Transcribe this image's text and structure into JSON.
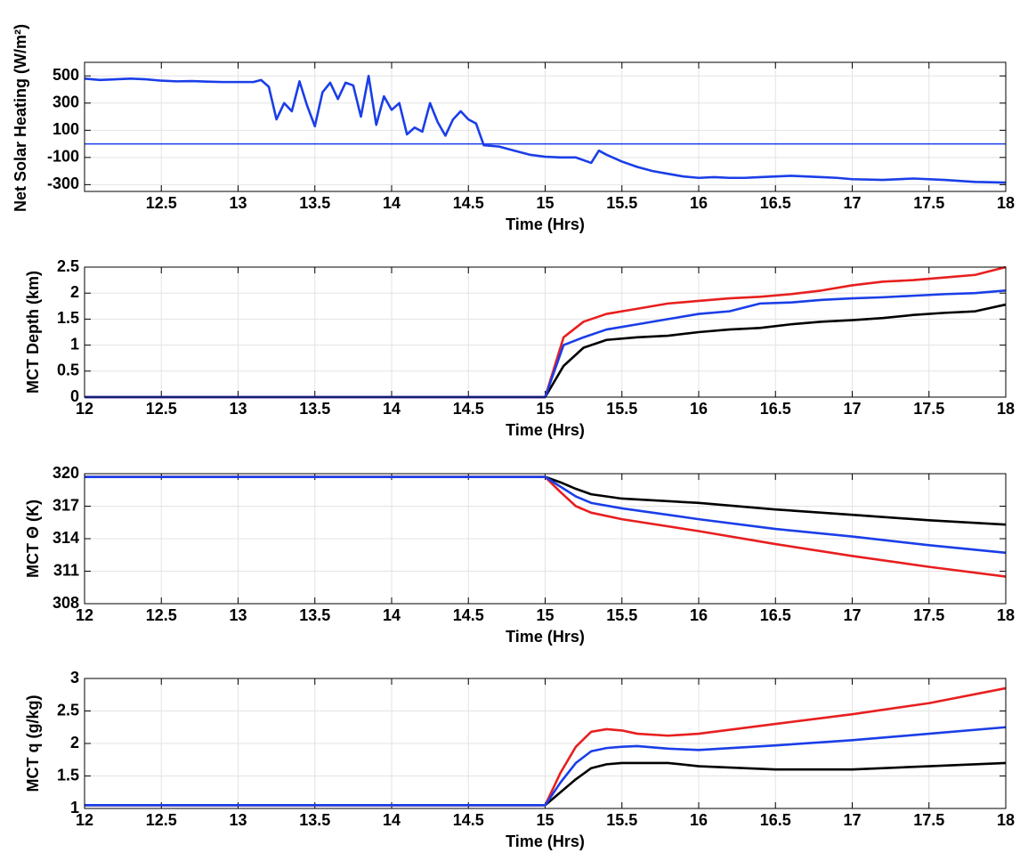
{
  "chart_data": [
    {
      "type": "line",
      "xlabel": "Time (Hrs)",
      "ylabel": "Net Solar Heating (W/m²)",
      "x": [
        12.0,
        12.1,
        12.2,
        12.3,
        12.4,
        12.5,
        12.6,
        12.7,
        12.8,
        12.9,
        13.0,
        13.1,
        13.15,
        13.2,
        13.25,
        13.3,
        13.35,
        13.4,
        13.45,
        13.5,
        13.55,
        13.6,
        13.65,
        13.7,
        13.75,
        13.8,
        13.85,
        13.9,
        13.95,
        14.0,
        14.05,
        14.1,
        14.15,
        14.2,
        14.25,
        14.3,
        14.35,
        14.4,
        14.45,
        14.5,
        14.55,
        14.6,
        14.7,
        14.8,
        14.9,
        15.0,
        15.1,
        15.2,
        15.3,
        15.35,
        15.4,
        15.5,
        15.6,
        15.7,
        15.8,
        15.9,
        16.0,
        16.1,
        16.2,
        16.3,
        16.4,
        16.5,
        16.6,
        16.7,
        16.8,
        16.9,
        17.0,
        17.2,
        17.4,
        17.6,
        17.8,
        18.0
      ],
      "series": [
        {
          "color": "#1a3ee8",
          "values": [
            480,
            470,
            475,
            480,
            475,
            465,
            460,
            462,
            458,
            455,
            455,
            455,
            470,
            420,
            180,
            300,
            240,
            460,
            280,
            130,
            380,
            450,
            330,
            450,
            430,
            200,
            500,
            140,
            350,
            250,
            300,
            70,
            120,
            90,
            300,
            160,
            60,
            180,
            240,
            180,
            150,
            -10,
            -20,
            -50,
            -80,
            -95,
            -100,
            -100,
            -140,
            -50,
            -80,
            -130,
            -170,
            -200,
            -220,
            -240,
            -250,
            -245,
            -250,
            -250,
            -245,
            -240,
            -235,
            -240,
            -245,
            -250,
            -260,
            -265,
            -255,
            -265,
            -280,
            -285
          ]
        }
      ],
      "reference_line": 0,
      "xlim": [
        12,
        18
      ],
      "xticks": [
        12.5,
        13,
        13.5,
        14,
        14.5,
        15,
        15.5,
        16,
        16.5,
        17,
        17.5,
        18
      ],
      "ylim": [
        -350,
        600
      ],
      "yticks": [
        -300,
        -100,
        100,
        300,
        500
      ],
      "grid": true
    },
    {
      "type": "line",
      "xlabel": "Time (Hrs)",
      "ylabel": "MCT Depth (km)",
      "x": [
        12,
        15,
        15.12,
        15.25,
        15.4,
        15.6,
        15.8,
        16.0,
        16.2,
        16.4,
        16.6,
        16.8,
        17.0,
        17.2,
        17.4,
        17.6,
        17.8,
        18.0
      ],
      "series": [
        {
          "color": "#000000",
          "values": [
            0,
            0,
            0.6,
            0.95,
            1.1,
            1.15,
            1.18,
            1.25,
            1.3,
            1.33,
            1.4,
            1.45,
            1.48,
            1.52,
            1.58,
            1.62,
            1.65,
            1.78
          ]
        },
        {
          "color": "#e81f1f",
          "values": [
            0,
            0,
            1.15,
            1.45,
            1.6,
            1.7,
            1.8,
            1.85,
            1.9,
            1.93,
            1.98,
            2.05,
            2.15,
            2.22,
            2.25,
            2.3,
            2.35,
            2.5
          ]
        },
        {
          "color": "#1a3ee8",
          "values": [
            0,
            0,
            1.0,
            1.15,
            1.3,
            1.4,
            1.5,
            1.6,
            1.65,
            1.8,
            1.82,
            1.87,
            1.9,
            1.92,
            1.95,
            1.98,
            2.0,
            2.05
          ]
        }
      ],
      "xlim": [
        12,
        18
      ],
      "xticks": [
        12,
        12.5,
        13,
        13.5,
        14,
        14.5,
        15,
        15.5,
        16,
        16.5,
        17,
        17.5,
        18
      ],
      "ylim": [
        0,
        2.5
      ],
      "yticks": [
        0,
        0.5,
        1,
        1.5,
        2,
        2.5
      ],
      "grid": true
    },
    {
      "type": "line",
      "xlabel": "Time (Hrs)",
      "ylabel": "MCT Θ (K)",
      "x": [
        12,
        15,
        15.1,
        15.2,
        15.3,
        15.5,
        16,
        16.5,
        17,
        17.5,
        18
      ],
      "series": [
        {
          "color": "#000000",
          "values": [
            319.7,
            319.7,
            319.2,
            318.6,
            318.1,
            317.7,
            317.3,
            316.7,
            316.2,
            315.7,
            315.3
          ]
        },
        {
          "color": "#e81f1f",
          "values": [
            319.7,
            319.7,
            318.3,
            317.0,
            316.4,
            315.8,
            314.7,
            313.5,
            312.4,
            311.4,
            310.5
          ]
        },
        {
          "color": "#1a3ee8",
          "values": [
            319.7,
            319.7,
            318.8,
            317.9,
            317.3,
            316.8,
            315.8,
            314.9,
            314.2,
            313.4,
            312.7
          ]
        }
      ],
      "xlim": [
        12,
        18
      ],
      "xticks": [
        12,
        12.5,
        13,
        13.5,
        14,
        14.5,
        15,
        15.5,
        16,
        16.5,
        17,
        17.5,
        18
      ],
      "ylim": [
        308,
        320
      ],
      "yticks": [
        308,
        311,
        314,
        317,
        320
      ],
      "grid": true
    },
    {
      "type": "line",
      "xlabel": "Time (Hrs)",
      "ylabel": "MCT q (g/kg)",
      "x": [
        12,
        15,
        15.1,
        15.2,
        15.3,
        15.4,
        15.5,
        15.6,
        15.8,
        16.0,
        16.5,
        17,
        17.5,
        18
      ],
      "series": [
        {
          "color": "#000000",
          "values": [
            1.05,
            1.05,
            1.25,
            1.45,
            1.62,
            1.68,
            1.7,
            1.7,
            1.7,
            1.65,
            1.6,
            1.6,
            1.65,
            1.7
          ]
        },
        {
          "color": "#e81f1f",
          "values": [
            1.05,
            1.05,
            1.55,
            1.95,
            2.18,
            2.22,
            2.2,
            2.15,
            2.12,
            2.15,
            2.3,
            2.45,
            2.62,
            2.85
          ]
        },
        {
          "color": "#1a3ee8",
          "values": [
            1.05,
            1.05,
            1.4,
            1.7,
            1.88,
            1.93,
            1.95,
            1.96,
            1.92,
            1.9,
            1.97,
            2.05,
            2.15,
            2.25
          ]
        }
      ],
      "xlim": [
        12,
        18
      ],
      "xticks": [
        12,
        12.5,
        13,
        13.5,
        14,
        14.5,
        15,
        15.5,
        16,
        16.5,
        17,
        17.5,
        18
      ],
      "ylim": [
        1,
        3
      ],
      "yticks": [
        1,
        1.5,
        2,
        2.5,
        3
      ],
      "grid": true
    }
  ]
}
